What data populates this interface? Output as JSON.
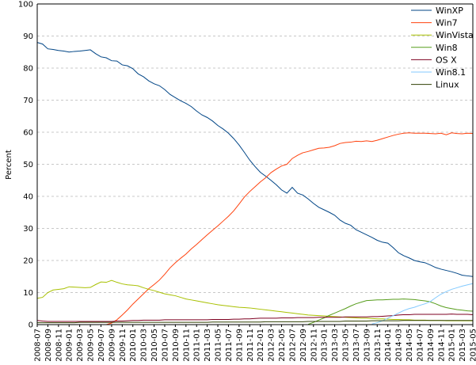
{
  "chart_data": {
    "type": "line",
    "title": "",
    "xlabel": "",
    "ylabel": "Percent",
    "ylim": [
      0,
      100
    ],
    "yticks": [
      0,
      10,
      20,
      30,
      40,
      50,
      60,
      70,
      80,
      90,
      100
    ],
    "grid": true,
    "legend_position": "top-right",
    "x": [
      "2008-07",
      "2008-08",
      "2008-09",
      "2008-10",
      "2008-11",
      "2008-12",
      "2009-01",
      "2009-02",
      "2009-03",
      "2009-04",
      "2009-05",
      "2009-06",
      "2009-07",
      "2009-08",
      "2009-09",
      "2009-10",
      "2009-11",
      "2009-12",
      "2010-01",
      "2010-02",
      "2010-03",
      "2010-04",
      "2010-05",
      "2010-06",
      "2010-07",
      "2010-08",
      "2010-09",
      "2010-10",
      "2010-11",
      "2010-12",
      "2011-01",
      "2011-02",
      "2011-03",
      "2011-04",
      "2011-05",
      "2011-06",
      "2011-07",
      "2011-08",
      "2011-09",
      "2011-10",
      "2011-11",
      "2011-12",
      "2012-01",
      "2012-02",
      "2012-03",
      "2012-04",
      "2012-05",
      "2012-06",
      "2012-07",
      "2012-08",
      "2012-09",
      "2012-10",
      "2012-11",
      "2012-12",
      "2013-01",
      "2013-02",
      "2013-03",
      "2013-04",
      "2013-05",
      "2013-06",
      "2013-07",
      "2013-08",
      "2013-09",
      "2013-10",
      "2013-11",
      "2013-12",
      "2014-01",
      "2014-02",
      "2014-03",
      "2014-04",
      "2014-05",
      "2014-06",
      "2014-07",
      "2014-08",
      "2014-09",
      "2014-10",
      "2014-11",
      "2014-12",
      "2015-01",
      "2015-02",
      "2015-03",
      "2015-04",
      "2015-05"
    ],
    "x_tick_labels": [
      "2008-07",
      "2008-09",
      "2008-11",
      "2009-01",
      "2009-03",
      "2009-05",
      "2009-07",
      "2009-09",
      "2009-11",
      "2010-01",
      "2010-03",
      "2010-05",
      "2010-07",
      "2010-09",
      "2010-11",
      "2011-01",
      "2011-03",
      "2011-05",
      "2011-07",
      "2011-09",
      "2011-11",
      "2012-01",
      "2012-03",
      "2012-05",
      "2012-07",
      "2012-09",
      "2012-11",
      "2013-01",
      "2013-03",
      "2013-05",
      "2013-07",
      "2013-09",
      "2013-11",
      "2014-01",
      "2014-03",
      "2014-05",
      "2014-07",
      "2014-09",
      "2014-11",
      "2015-01",
      "2015-03",
      "2015-05"
    ],
    "series": [
      {
        "name": "WinXP",
        "color": "#004586",
        "values": [
          88,
          87.5,
          86,
          85.8,
          85.5,
          85.3,
          85,
          85.2,
          85.3,
          85.5,
          85.7,
          84.5,
          83.5,
          83.2,
          82.3,
          82.2,
          81,
          80.7,
          79.8,
          78.2,
          77.3,
          76,
          75.1,
          74.5,
          73.3,
          71.8,
          70.8,
          69.8,
          69,
          68,
          66.6,
          65.4,
          64.6,
          63.5,
          62.1,
          61,
          59.7,
          58,
          56,
          53.7,
          51.3,
          49.3,
          47.5,
          46.3,
          45,
          43.6,
          42,
          41,
          42.8,
          41,
          40.4,
          39.2,
          37.8,
          36.6,
          35.8,
          35,
          34.1,
          32.6,
          31.6,
          31,
          29.6,
          28.8,
          28,
          27.2,
          26.3,
          25.7,
          25.4,
          24,
          22.4,
          21.5,
          20.8,
          20,
          19.6,
          19.3,
          18.6,
          17.8,
          17.3,
          16.9,
          16.5,
          16,
          15.4,
          15.2,
          15
        ]
      },
      {
        "name": "Win7",
        "color": "#ff420e",
        "values": [
          0,
          0,
          0,
          0,
          0,
          0,
          0,
          0,
          0,
          0,
          0,
          0,
          0,
          0,
          0.5,
          1.5,
          3,
          4.6,
          6.4,
          8,
          9.6,
          11.2,
          12.5,
          13.9,
          15.7,
          17.7,
          19.3,
          20.7,
          22,
          23.6,
          25,
          26.5,
          28,
          29.4,
          30.8,
          32.3,
          33.8,
          35.5,
          37.6,
          39.8,
          41.5,
          43,
          44.5,
          45.8,
          47.4,
          48.5,
          49.5,
          50,
          51.8,
          52.8,
          53.6,
          54,
          54.5,
          55,
          55.1,
          55.3,
          55.8,
          56.5,
          56.8,
          56.9,
          57.2,
          57.1,
          57.3,
          57.1,
          57.5,
          58,
          58.5,
          59,
          59.4,
          59.7,
          59.8,
          59.7,
          59.7,
          59.7,
          59.6,
          59.5,
          59.7,
          59.2,
          59.8,
          59.6,
          59.5,
          59.7,
          59.6
        ]
      },
      {
        "name": "WinVista",
        "color": "#a8c000",
        "values": [
          8.2,
          8.5,
          10,
          10.8,
          11,
          11.2,
          11.8,
          11.7,
          11.6,
          11.5,
          11.6,
          12.5,
          13.3,
          13.2,
          13.8,
          13.2,
          12.7,
          12.4,
          12.3,
          12.1,
          11.5,
          11,
          10.6,
          10.1,
          9.6,
          9.3,
          9,
          8.5,
          8,
          7.7,
          7.4,
          7.1,
          6.8,
          6.5,
          6.2,
          6,
          5.8,
          5.6,
          5.4,
          5.3,
          5.2,
          5,
          4.8,
          4.6,
          4.4,
          4.2,
          4,
          3.8,
          3.6,
          3.4,
          3.2,
          3,
          2.9,
          2.8,
          2.7,
          2.6,
          2.5,
          2.4,
          2.3,
          2.2,
          2.1,
          2,
          2,
          1.9,
          1.8,
          1.8,
          1.7,
          1.6,
          1.6,
          1.5,
          1.5,
          1.4,
          1.4,
          1.4,
          1.3,
          1.3,
          1.3,
          1.2,
          1.2,
          1.2,
          1.2,
          1.2,
          1.2
        ]
      },
      {
        "name": "Win8",
        "color": "#579d1c",
        "values": [
          null,
          null,
          null,
          null,
          null,
          null,
          null,
          null,
          null,
          null,
          null,
          null,
          null,
          null,
          null,
          null,
          null,
          null,
          null,
          null,
          null,
          null,
          null,
          null,
          null,
          null,
          null,
          null,
          null,
          null,
          null,
          null,
          null,
          null,
          null,
          null,
          null,
          null,
          null,
          null,
          null,
          null,
          null,
          null,
          null,
          null,
          null,
          null,
          null,
          null,
          null,
          0.1,
          0.7,
          1.4,
          2.1,
          2.9,
          3.6,
          4.3,
          5,
          5.8,
          6.5,
          7,
          7.5,
          7.6,
          7.7,
          7.7,
          7.8,
          7.9,
          7.9,
          8,
          7.9,
          7.8,
          7.6,
          7.4,
          7.1,
          6.5,
          5.8,
          5.3,
          5,
          4.7,
          4.5,
          4.3,
          4.2
        ]
      },
      {
        "name": "OS X",
        "color": "#7e0021",
        "values": [
          1.3,
          1.1,
          1,
          1,
          1,
          1,
          1,
          1,
          1,
          1,
          1,
          1,
          1,
          1,
          1,
          1.1,
          1.1,
          1.2,
          1.3,
          1.3,
          1.4,
          1.4,
          1.4,
          1.4,
          1.5,
          1.5,
          1.5,
          1.5,
          1.5,
          1.5,
          1.5,
          1.5,
          1.5,
          1.6,
          1.6,
          1.6,
          1.6,
          1.7,
          1.7,
          1.8,
          1.8,
          1.9,
          2,
          2,
          2,
          2,
          2.1,
          2.1,
          2.1,
          2.2,
          2.2,
          2.2,
          2.2,
          2.3,
          2.3,
          2.3,
          2.3,
          2.3,
          2.4,
          2.4,
          2.4,
          2.4,
          2.4,
          2.5,
          2.5,
          2.6,
          2.7,
          2.8,
          3,
          3.1,
          3.1,
          3.2,
          3.2,
          3.2,
          3.2,
          3.2,
          3.2,
          3.2,
          3.3,
          3.2,
          3.2,
          3.2,
          3.1
        ]
      },
      {
        "name": "Win8.1",
        "color": "#83caff",
        "values": [
          null,
          null,
          null,
          null,
          null,
          null,
          null,
          null,
          null,
          null,
          null,
          null,
          null,
          null,
          null,
          null,
          null,
          null,
          null,
          null,
          null,
          null,
          null,
          null,
          null,
          null,
          null,
          null,
          null,
          null,
          null,
          null,
          null,
          null,
          null,
          null,
          null,
          null,
          null,
          null,
          null,
          null,
          null,
          null,
          null,
          null,
          null,
          null,
          null,
          null,
          null,
          null,
          null,
          null,
          null,
          null,
          null,
          null,
          null,
          null,
          null,
          null,
          null,
          0.2,
          0.6,
          1.2,
          2,
          2.8,
          3.6,
          4.4,
          5,
          5.4,
          6,
          6.5,
          7.2,
          8.4,
          9.5,
          10.3,
          11,
          11.5,
          12,
          12.4,
          12.8
        ]
      },
      {
        "name": "Linux",
        "color": "#314004",
        "values": [
          0.6,
          0.6,
          0.6,
          0.6,
          0.6,
          0.6,
          0.6,
          0.6,
          0.7,
          0.7,
          0.7,
          0.7,
          0.7,
          0.7,
          0.7,
          0.7,
          0.7,
          0.7,
          0.7,
          0.7,
          0.7,
          0.7,
          0.7,
          0.7,
          0.7,
          0.7,
          0.7,
          0.7,
          0.7,
          0.7,
          0.7,
          0.7,
          0.7,
          0.8,
          0.8,
          0.8,
          0.8,
          0.8,
          0.8,
          0.8,
          0.8,
          0.8,
          0.8,
          0.9,
          0.9,
          0.9,
          0.9,
          0.9,
          0.9,
          0.9,
          0.9,
          1,
          1,
          1,
          1,
          1,
          1,
          1,
          1.1,
          1.1,
          1.1,
          1.1,
          1.1,
          1.2,
          1.2,
          1.2,
          1.2,
          1.2,
          1.2,
          1.3,
          1.3,
          1.3,
          1.3,
          1.3,
          1.3,
          1.3,
          1.3,
          1.3,
          1.3,
          1.3,
          1.3,
          1.3,
          1.3
        ]
      }
    ]
  }
}
